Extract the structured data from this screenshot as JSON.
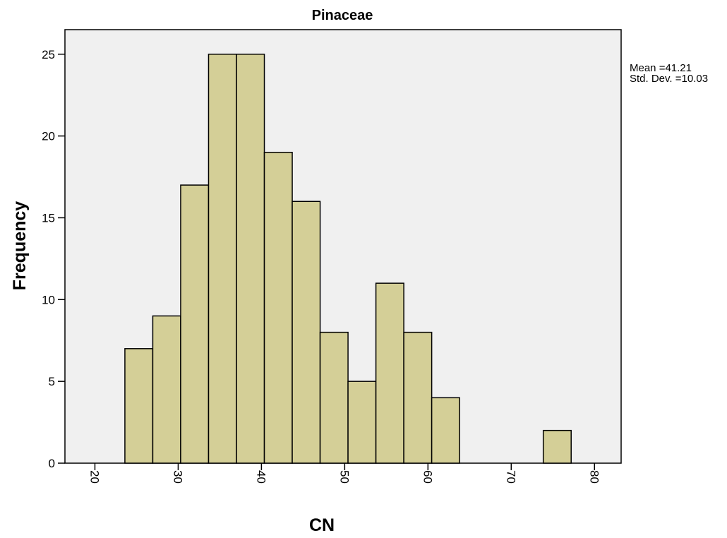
{
  "chart_data": {
    "type": "bar",
    "title": "Pinaceae",
    "xlabel": "CN",
    "ylabel": "Frequency",
    "bins": [
      {
        "start": 23.6,
        "end": 26.95,
        "count": 7
      },
      {
        "start": 26.95,
        "end": 30.3,
        "count": 9
      },
      {
        "start": 30.3,
        "end": 33.65,
        "count": 17
      },
      {
        "start": 33.65,
        "end": 37.0,
        "count": 25
      },
      {
        "start": 37.0,
        "end": 40.35,
        "count": 25
      },
      {
        "start": 40.35,
        "end": 43.7,
        "count": 19
      },
      {
        "start": 43.7,
        "end": 47.05,
        "count": 16
      },
      {
        "start": 47.05,
        "end": 50.4,
        "count": 8
      },
      {
        "start": 50.4,
        "end": 53.75,
        "count": 5
      },
      {
        "start": 53.75,
        "end": 57.1,
        "count": 11
      },
      {
        "start": 57.1,
        "end": 60.45,
        "count": 8
      },
      {
        "start": 60.45,
        "end": 63.8,
        "count": 4
      },
      {
        "start": 73.85,
        "end": 77.2,
        "count": 2
      }
    ],
    "xlim": [
      16.4,
      83.2
    ],
    "ylim": [
      0,
      26.5
    ],
    "xticks": [
      20,
      30,
      40,
      50,
      60,
      70,
      80
    ],
    "yticks": [
      0,
      5,
      10,
      15,
      20,
      25
    ],
    "grid": false,
    "stats": {
      "mean_label": "Mean =41.21",
      "std_label": "Std. Dev. =10.03"
    },
    "colors": {
      "bar_fill": "#d4cf97",
      "bar_stroke": "#000000",
      "plot_bg": "#f0f0f0"
    }
  }
}
